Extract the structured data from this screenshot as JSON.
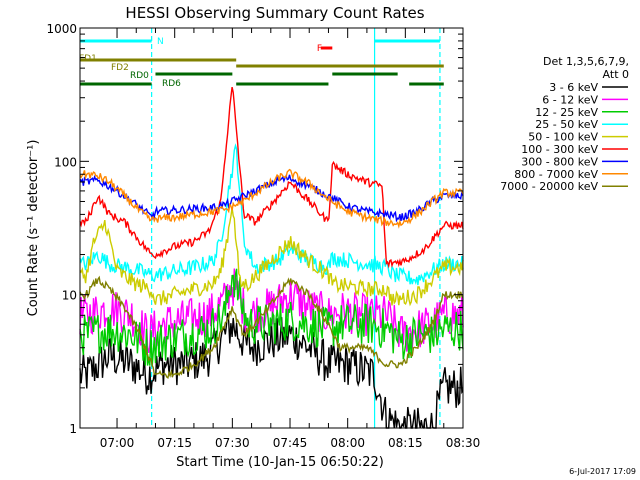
{
  "chart_data": {
    "type": "line",
    "title": "HESSI Observing Summary Count Rates",
    "xlabel": "Start Time (10-Jan-15 06:50:22)",
    "ylabel": "Count Rate (s⁻¹ detector⁻¹)",
    "xlim": [
      "06:50:22",
      "08:30:00"
    ],
    "ylim": [
      1,
      1000
    ],
    "yscale": "log",
    "grid": false,
    "x_ticks": [
      "07:00",
      "07:15",
      "07:30",
      "07:45",
      "08:00",
      "08:15",
      "08:30"
    ],
    "y_ticks": [
      "1",
      "10",
      "100",
      "1000"
    ],
    "legend_title": [
      "Det 1,3,5,6,7,9,",
      "Att 0"
    ],
    "legend_position": "right",
    "timestamp": "6-Jul-2017 17:09",
    "series": [
      {
        "name": "3 - 6 keV",
        "color": "#000000",
        "x": [
          "06:52",
          "06:58",
          "07:04",
          "07:08",
          "07:12",
          "07:18",
          "07:24",
          "07:28",
          "07:30",
          "07:34",
          "07:40",
          "07:45",
          "07:50",
          "07:55",
          "08:00",
          "08:07",
          "08:10",
          "08:14",
          "08:18",
          "08:22",
          "08:25"
        ],
        "values": [
          2.5,
          3.5,
          3,
          2.5,
          3,
          3,
          3.5,
          5,
          6,
          4,
          4.5,
          5,
          4,
          3,
          3,
          2.5,
          1.2,
          1,
          1,
          1,
          2
        ]
      },
      {
        "name": "6 - 12 keV",
        "color": "#ff00ff",
        "x": [
          "06:52",
          "06:58",
          "07:04",
          "07:08",
          "07:12",
          "07:18",
          "07:24",
          "07:28",
          "07:30",
          "07:34",
          "07:40",
          "07:45",
          "07:50",
          "07:55",
          "07:58",
          "08:05",
          "08:10",
          "08:14",
          "08:18",
          "08:22",
          "08:25"
        ],
        "values": [
          7,
          8,
          7,
          5,
          6,
          6.5,
          7,
          9,
          12,
          7,
          8,
          10,
          8,
          7,
          7.5,
          7,
          7,
          5,
          5.5,
          6,
          7
        ]
      },
      {
        "name": "12 - 25 keV",
        "color": "#00cc00",
        "x": [
          "06:52",
          "06:58",
          "07:04",
          "07:08",
          "07:12",
          "07:18",
          "07:24",
          "07:28",
          "07:30",
          "07:34",
          "07:40",
          "07:45",
          "07:50",
          "07:55",
          "07:58",
          "08:05",
          "08:10",
          "08:14",
          "08:18",
          "08:22",
          "08:25"
        ],
        "values": [
          5,
          5.5,
          5,
          4,
          4.5,
          5,
          5.5,
          7,
          15,
          6,
          6,
          6.5,
          6,
          5.5,
          6,
          6,
          5.5,
          4.5,
          5,
          5,
          5.5
        ]
      },
      {
        "name": "25 - 50 keV",
        "color": "#00ffff",
        "x": [
          "06:52",
          "06:55",
          "06:58",
          "07:02",
          "07:06",
          "07:09",
          "07:10",
          "07:15",
          "07:20",
          "07:25",
          "07:27",
          "07:29",
          "07:31",
          "07:33",
          "07:36",
          "07:42",
          "07:45",
          "07:50",
          "07:55",
          "07:56",
          "08:05",
          "08:10",
          "08:12",
          "08:18",
          "08:25"
        ],
        "values": [
          17,
          20,
          17,
          16,
          15,
          14,
          14,
          15,
          16,
          18,
          25,
          60,
          130,
          25,
          16,
          18,
          22,
          18,
          16,
          19,
          17,
          16,
          14,
          13,
          17
        ]
      },
      {
        "name": "50 - 100 keV",
        "color": "#cccc00",
        "x": [
          "06:52",
          "06:54",
          "06:57",
          "07:00",
          "07:05",
          "07:09",
          "07:10",
          "07:15",
          "07:20",
          "07:25",
          "07:27",
          "07:29",
          "07:30",
          "07:32",
          "07:34",
          "07:40",
          "07:45",
          "07:50",
          "07:55",
          "07:56",
          "08:05",
          "08:10",
          "08:12",
          "08:18",
          "08:25"
        ],
        "values": [
          14,
          25,
          35,
          15,
          12,
          11,
          9,
          10,
          11,
          12,
          15,
          30,
          50,
          12,
          12,
          18,
          25,
          18,
          14,
          12,
          11,
          11,
          9,
          10,
          16
        ]
      },
      {
        "name": "100 - 300 keV",
        "color": "#ff0000",
        "x": [
          "06:52",
          "06:55",
          "06:58",
          "07:02",
          "07:06",
          "07:09",
          "07:10",
          "07:15",
          "07:20",
          "07:24",
          "07:27",
          "07:29",
          "07:30",
          "07:31",
          "07:33",
          "07:36",
          "07:42",
          "07:45",
          "07:50",
          "07:55",
          "07:56",
          "08:00",
          "08:05",
          "08:09",
          "08:10",
          "08:15",
          "08:20",
          "08:25"
        ],
        "values": [
          35,
          55,
          40,
          35,
          25,
          20,
          20,
          23,
          25,
          30,
          50,
          200,
          370,
          180,
          40,
          35,
          55,
          70,
          50,
          35,
          95,
          80,
          70,
          65,
          17,
          18,
          22,
          33
        ]
      },
      {
        "name": "300 - 800 keV",
        "color": "#0000ff",
        "x": [
          "06:52",
          "06:55",
          "06:58",
          "07:02",
          "07:06",
          "07:09",
          "07:10",
          "07:15",
          "07:20",
          "07:25",
          "07:29",
          "07:30",
          "07:33",
          "07:36",
          "07:42",
          "07:45",
          "07:50",
          "07:55",
          "08:00",
          "08:05",
          "08:10",
          "08:14",
          "08:18",
          "08:22",
          "08:25"
        ],
        "values": [
          70,
          72,
          65,
          55,
          45,
          38,
          42,
          43,
          44,
          45,
          48,
          50,
          55,
          60,
          72,
          75,
          65,
          55,
          46,
          42,
          40,
          38,
          42,
          50,
          55
        ]
      },
      {
        "name": "800 - 7000 keV",
        "color": "#ff8800",
        "x": [
          "06:52",
          "06:55",
          "06:58",
          "07:02",
          "07:06",
          "07:09",
          "07:10",
          "07:15",
          "07:20",
          "07:25",
          "07:29",
          "07:30",
          "07:33",
          "07:36",
          "07:42",
          "07:45",
          "07:50",
          "07:55",
          "08:00",
          "08:05",
          "08:10",
          "08:14",
          "08:18",
          "08:22",
          "08:25"
        ],
        "values": [
          80,
          78,
          70,
          55,
          42,
          36,
          37,
          38,
          40,
          42,
          44,
          46,
          50,
          58,
          75,
          82,
          68,
          52,
          42,
          38,
          35,
          34,
          40,
          50,
          58
        ]
      },
      {
        "name": "7000 - 20000 keV",
        "color": "#808000",
        "x": [
          "06:52",
          "06:55",
          "06:58",
          "07:02",
          "07:06",
          "07:09",
          "07:10",
          "07:15",
          "07:20",
          "07:25",
          "07:28",
          "07:30",
          "07:33",
          "07:38",
          "07:42",
          "07:45",
          "07:50",
          "07:55",
          "07:58",
          "08:05",
          "08:10",
          "08:14",
          "08:18",
          "08:22",
          "08:25"
        ],
        "values": [
          10,
          13,
          11,
          8,
          5,
          3,
          2.5,
          2.5,
          3,
          4,
          6,
          8,
          5,
          7,
          10,
          13,
          10,
          6,
          4,
          4,
          3,
          3,
          4,
          6,
          10
        ]
      }
    ],
    "vertical_markers": [
      {
        "x": "07:09",
        "style": "dashed",
        "color": "#00ffff"
      },
      {
        "x": "08:07",
        "style": "solid",
        "color": "#00ffff"
      },
      {
        "x": "08:24",
        "style": "dashed",
        "color": "#00ffff"
      }
    ],
    "flag_bars": [
      {
        "label": "N",
        "color": "#00ffff",
        "segments": [
          [
            "06:50:22",
            "07:09"
          ],
          [
            "08:07",
            "08:24"
          ]
        ]
      },
      {
        "label": "F",
        "color": "#ff0000",
        "segments": [
          [
            "07:53",
            "07:56"
          ]
        ]
      },
      {
        "label": "FD1",
        "color": "#808000",
        "segments": [
          [
            "06:50:22",
            "07:31"
          ]
        ]
      },
      {
        "label": "FD2",
        "color": "#808000",
        "segments": [
          [
            "07:31",
            "08:25"
          ]
        ]
      },
      {
        "label": "RD0",
        "color": "#006600",
        "segments": [
          [
            "07:10",
            "07:30"
          ],
          [
            "07:56",
            "08:13"
          ]
        ]
      },
      {
        "label": "RD6",
        "color": "#006600",
        "segments": [
          [
            "06:50:22",
            "07:09"
          ],
          [
            "07:31",
            "07:55"
          ],
          [
            "08:16",
            "08:25"
          ]
        ]
      }
    ]
  }
}
